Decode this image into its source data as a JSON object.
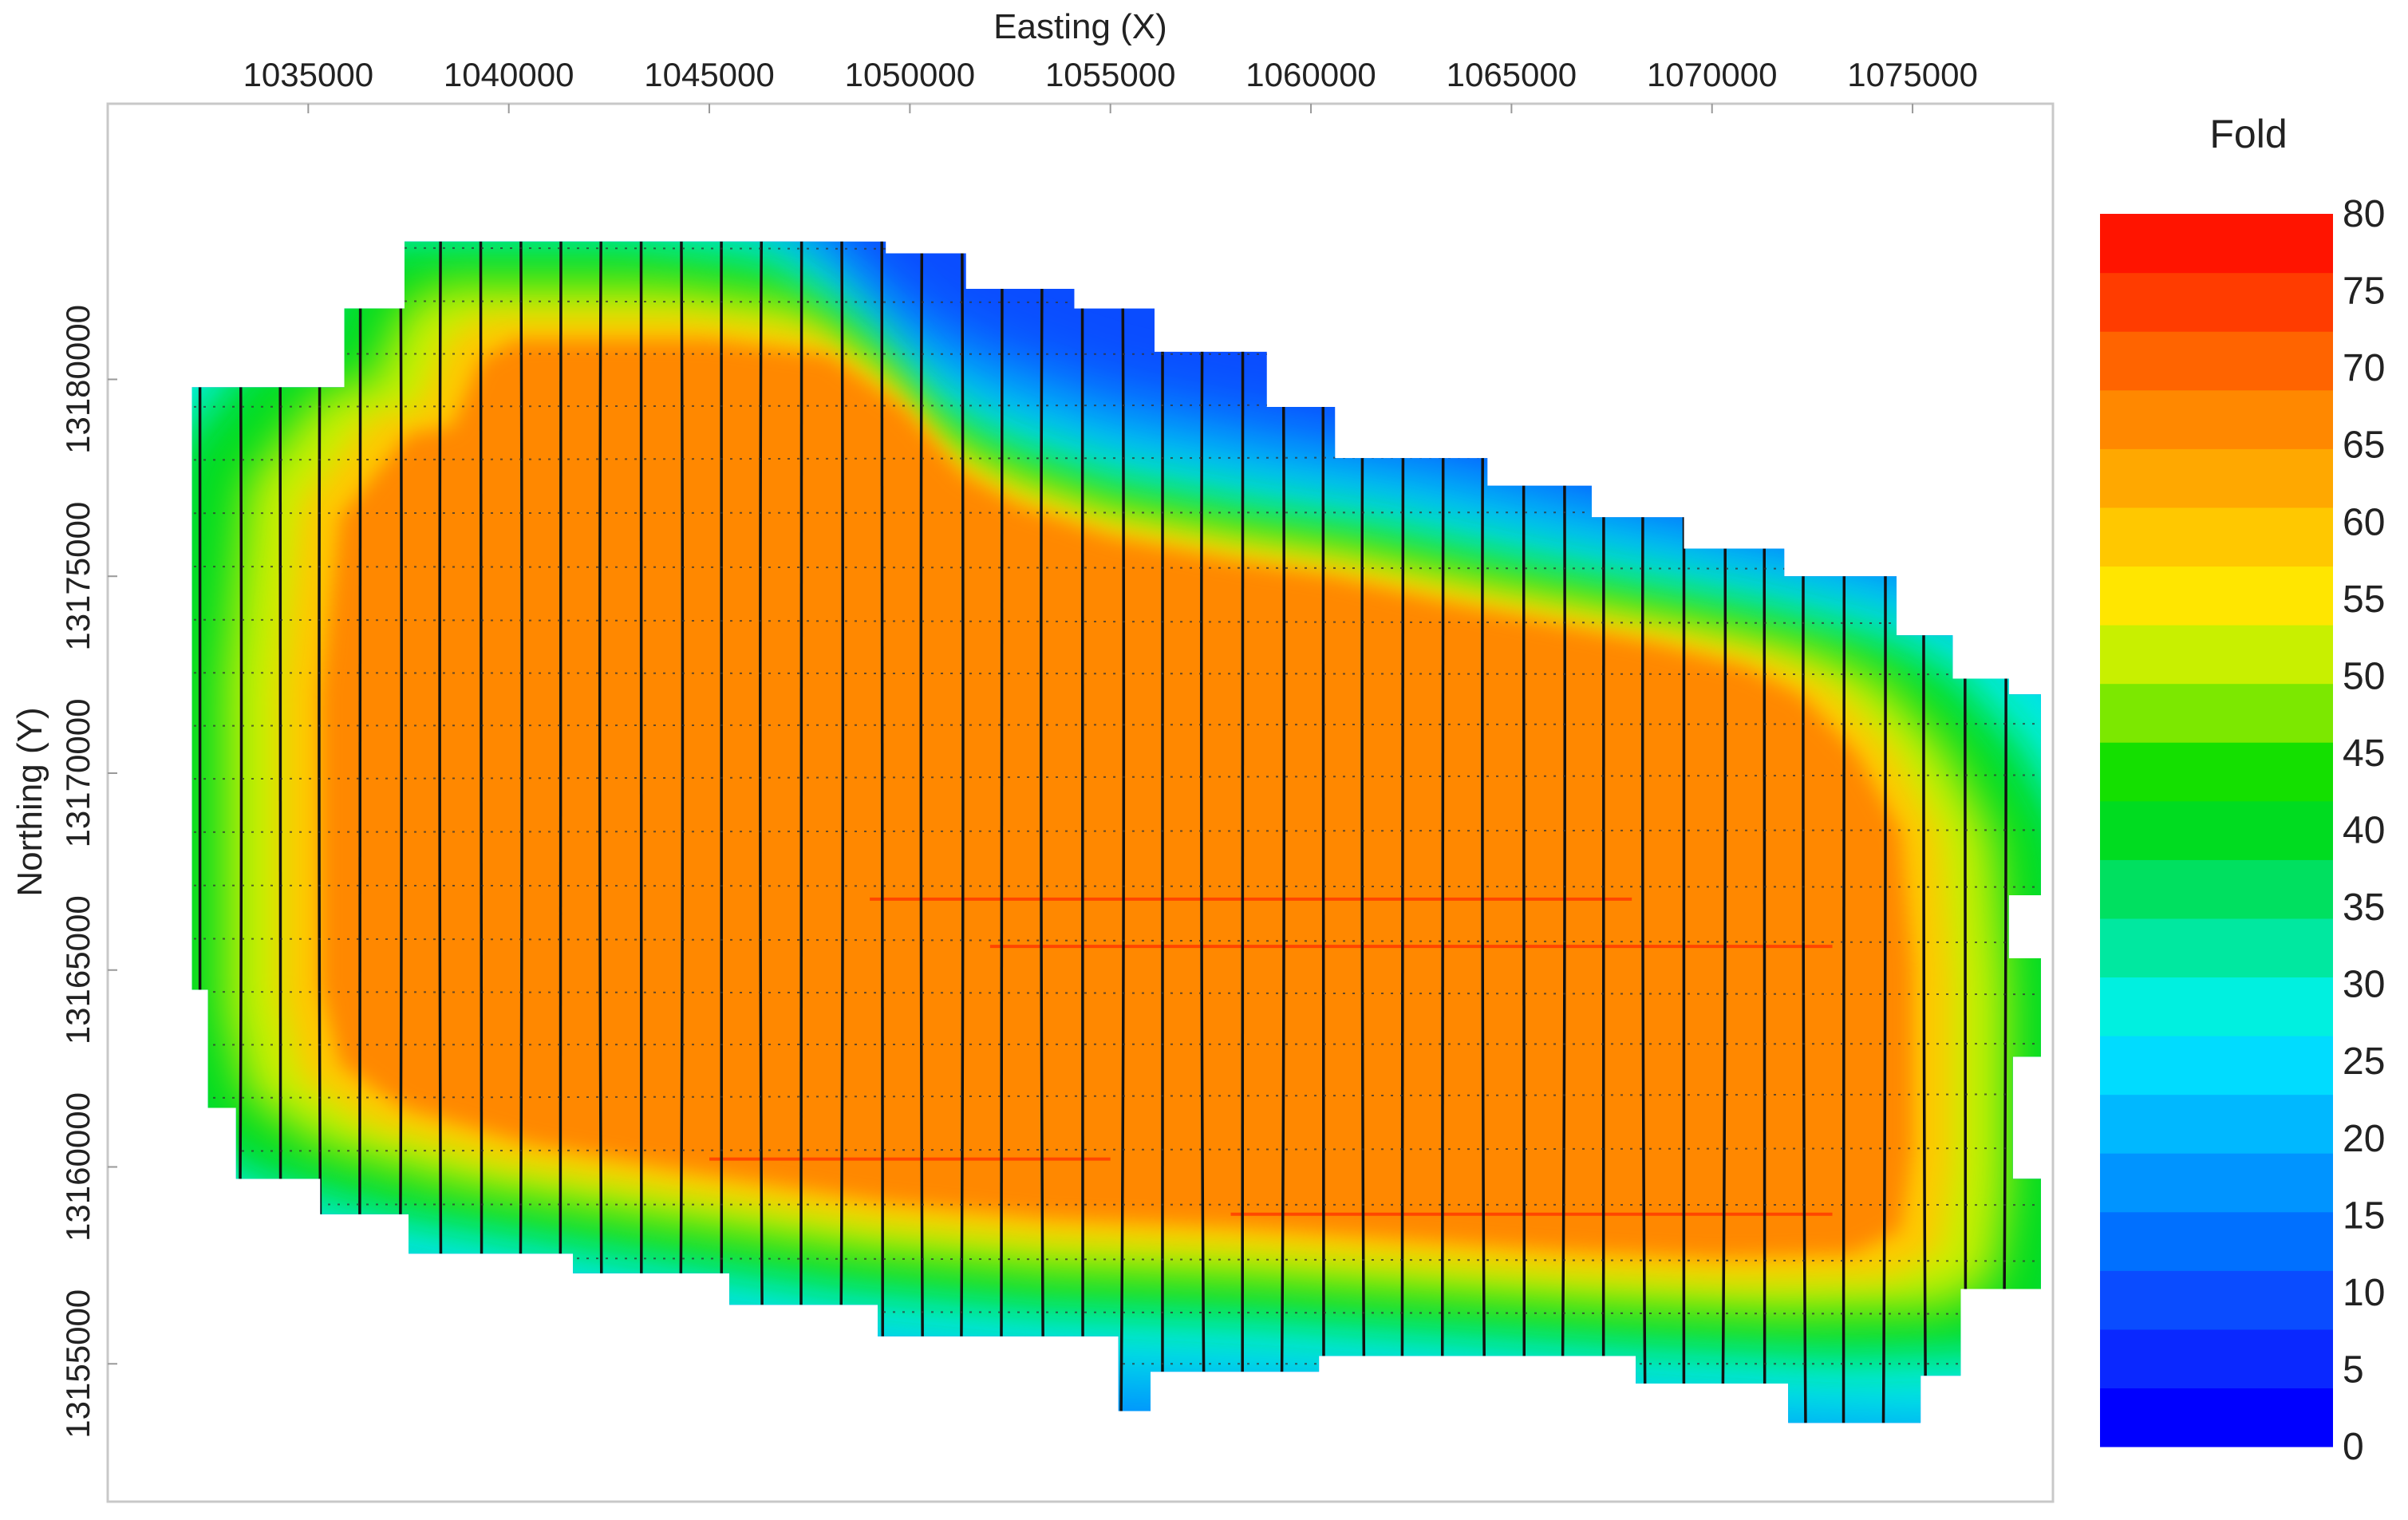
{
  "chart_data": {
    "type": "heatmap",
    "xlabel": "Easting (X)",
    "ylabel": "Northing (Y)",
    "xticks": [
      1035000,
      1040000,
      1045000,
      1050000,
      1055000,
      1060000,
      1065000,
      1070000,
      1075000
    ],
    "yticks": [
      13155000,
      13160000,
      13165000,
      13170000,
      13175000,
      13180000
    ],
    "xlim": [
      1030000,
      1078500
    ],
    "ylim": [
      13151500,
      13187000
    ],
    "colorbar": {
      "title": "Fold",
      "min": 0,
      "max": 80,
      "ticks": [
        0,
        5,
        10,
        15,
        20,
        25,
        30,
        35,
        40,
        45,
        50,
        55,
        60,
        65,
        70,
        75,
        80
      ],
      "colors": [
        "#0000ff",
        "#0a28ff",
        "#0a4cff",
        "#0070ff",
        "#0094ff",
        "#00b8ff",
        "#00dcff",
        "#00f0e0",
        "#00e8a0",
        "#00e060",
        "#00dc20",
        "#14e000",
        "#7ce800",
        "#c8f000",
        "#ffe600",
        "#ffc800",
        "#ffa800",
        "#ff8800",
        "#ff6400",
        "#ff3c00",
        "#ff1400"
      ]
    },
    "survey_outline": [
      [
        1037400,
        13183500
      ],
      [
        1037400,
        13181800
      ],
      [
        1035900,
        13181800
      ],
      [
        1035900,
        13179800
      ],
      [
        1032100,
        13179800
      ],
      [
        1032100,
        13164500
      ],
      [
        1032500,
        13164500
      ],
      [
        1032500,
        13161500
      ],
      [
        1033200,
        13161500
      ],
      [
        1033200,
        13159700
      ],
      [
        1035300,
        13159700
      ],
      [
        1035300,
        13158800
      ],
      [
        1037500,
        13158800
      ],
      [
        1037500,
        13157800
      ],
      [
        1041600,
        13157800
      ],
      [
        1041600,
        13157300
      ],
      [
        1045500,
        13157300
      ],
      [
        1045500,
        13156500
      ],
      [
        1049200,
        13156500
      ],
      [
        1049200,
        13155700
      ],
      [
        1055200,
        13155700
      ],
      [
        1055200,
        13153800
      ],
      [
        1056000,
        13153800
      ],
      [
        1056000,
        13154800
      ],
      [
        1060200,
        13154800
      ],
      [
        1060200,
        13155200
      ],
      [
        1068100,
        13155200
      ],
      [
        1068100,
        13154500
      ],
      [
        1071900,
        13154500
      ],
      [
        1071900,
        13153500
      ],
      [
        1075200,
        13153500
      ],
      [
        1075200,
        13154700
      ],
      [
        1076200,
        13154700
      ],
      [
        1076200,
        13156900
      ],
      [
        1078200,
        13156900
      ],
      [
        1078200,
        13159700
      ],
      [
        1077500,
        13159700
      ],
      [
        1077500,
        13162800
      ],
      [
        1078200,
        13162800
      ],
      [
        1078200,
        13165300
      ],
      [
        1077400,
        13165300
      ],
      [
        1077400,
        13166900
      ],
      [
        1078200,
        13166900
      ],
      [
        1078200,
        13172000
      ],
      [
        1077400,
        13172000
      ],
      [
        1077400,
        13172400
      ],
      [
        1076000,
        13172400
      ],
      [
        1076000,
        13173500
      ],
      [
        1074600,
        13173500
      ],
      [
        1074600,
        13175000
      ],
      [
        1071800,
        13175000
      ],
      [
        1071800,
        13175700
      ],
      [
        1069300,
        13175700
      ],
      [
        1069300,
        13176500
      ],
      [
        1067000,
        13176500
      ],
      [
        1067000,
        13177300
      ],
      [
        1064400,
        13177300
      ],
      [
        1064400,
        13178000
      ],
      [
        1060600,
        13178000
      ],
      [
        1060600,
        13179300
      ],
      [
        1058900,
        13179300
      ],
      [
        1058900,
        13180700
      ],
      [
        1056100,
        13180700
      ],
      [
        1056100,
        13181800
      ],
      [
        1054100,
        13181800
      ],
      [
        1054100,
        13182300
      ],
      [
        1051400,
        13182300
      ],
      [
        1051400,
        13183200
      ],
      [
        1049400,
        13183200
      ],
      [
        1049400,
        13183500
      ]
    ],
    "high_fold_core": [
      [
        1040200,
        13181000
      ],
      [
        1039300,
        13180500
      ],
      [
        1038600,
        13178800
      ],
      [
        1037500,
        13178600
      ],
      [
        1035800,
        13176500
      ],
      [
        1035300,
        13172000
      ],
      [
        1035300,
        13164600
      ],
      [
        1035800,
        13162600
      ],
      [
        1037400,
        13161500
      ],
      [
        1040500,
        13160600
      ],
      [
        1044500,
        13159900
      ],
      [
        1049500,
        13159100
      ],
      [
        1053500,
        13158700
      ],
      [
        1058000,
        13158500
      ],
      [
        1062000,
        13158200
      ],
      [
        1066000,
        13157900
      ],
      [
        1070000,
        13157700
      ],
      [
        1073500,
        13157800
      ],
      [
        1074700,
        13158400
      ],
      [
        1075000,
        13160500
      ],
      [
        1075000,
        13165000
      ],
      [
        1074700,
        13168500
      ],
      [
        1073600,
        13170500
      ],
      [
        1072200,
        13172000
      ],
      [
        1070800,
        13172700
      ],
      [
        1068500,
        13173300
      ],
      [
        1066000,
        13173800
      ],
      [
        1063500,
        13174300
      ],
      [
        1060500,
        13175000
      ],
      [
        1058000,
        13175400
      ],
      [
        1055000,
        13176000
      ],
      [
        1052700,
        13176800
      ],
      [
        1051300,
        13177600
      ],
      [
        1049800,
        13179300
      ],
      [
        1048000,
        13180600
      ],
      [
        1045000,
        13181000
      ]
    ]
  }
}
